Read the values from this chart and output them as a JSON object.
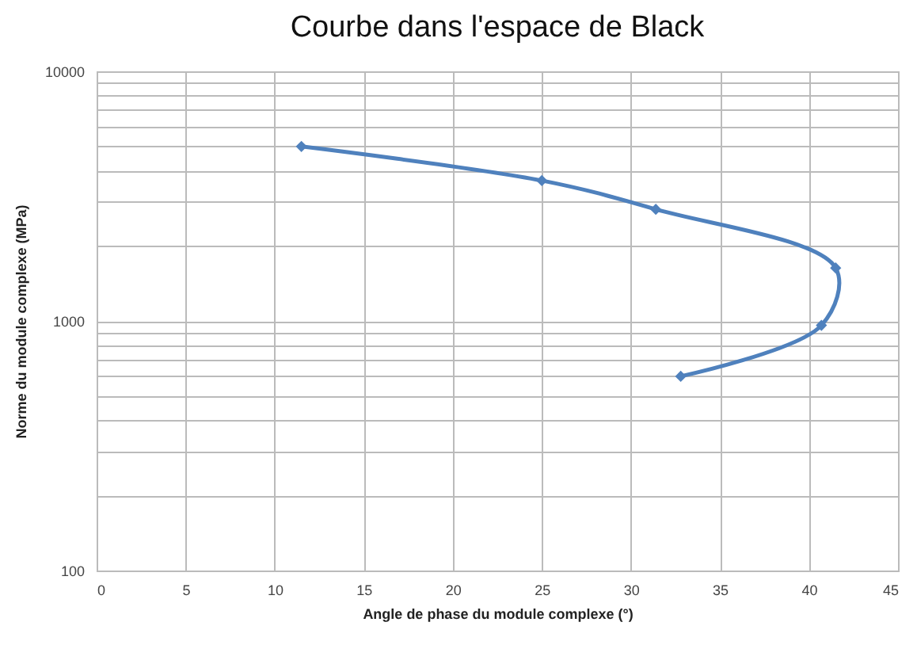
{
  "chart_data": {
    "type": "line",
    "title": "Courbe dans l'espace de Black",
    "xlabel": "Angle de phase du module complexe (°)",
    "ylabel": "Norme du module complexe (MPa)",
    "x": [
      11.5,
      25,
      31.4,
      41.5,
      40.7,
      32.8
    ],
    "series": [
      {
        "color": "#4f81bd",
        "values": [
          5000,
          3650,
          2800,
          1630,
          960,
          600
        ]
      }
    ],
    "xlim": [
      0,
      45
    ],
    "xticks": [
      0,
      5,
      10,
      15,
      20,
      25,
      30,
      35,
      40,
      45
    ],
    "ylim": [
      100,
      10000
    ],
    "yticks": [
      100,
      {
        "value": 200,
        "label": null
      },
      {
        "value": 300,
        "label": null
      },
      {
        "value": 400,
        "label": null
      },
      {
        "value": 500,
        "label": null
      },
      {
        "value": 600,
        "label": null
      },
      {
        "value": 700,
        "label": null
      },
      {
        "value": 800,
        "label": null
      },
      {
        "value": 900,
        "label": null
      },
      1000,
      {
        "value": 2000,
        "label": null
      },
      {
        "value": 3000,
        "label": null
      },
      {
        "value": 4000,
        "label": null
      },
      {
        "value": 5000,
        "label": null
      },
      {
        "value": 6000,
        "label": null
      },
      {
        "value": 7000,
        "label": null
      },
      {
        "value": 8000,
        "label": null
      },
      {
        "value": 9000,
        "label": null
      },
      10000
    ],
    "log": true,
    "grid": true,
    "marker": "diamond",
    "line_style": "solid"
  }
}
